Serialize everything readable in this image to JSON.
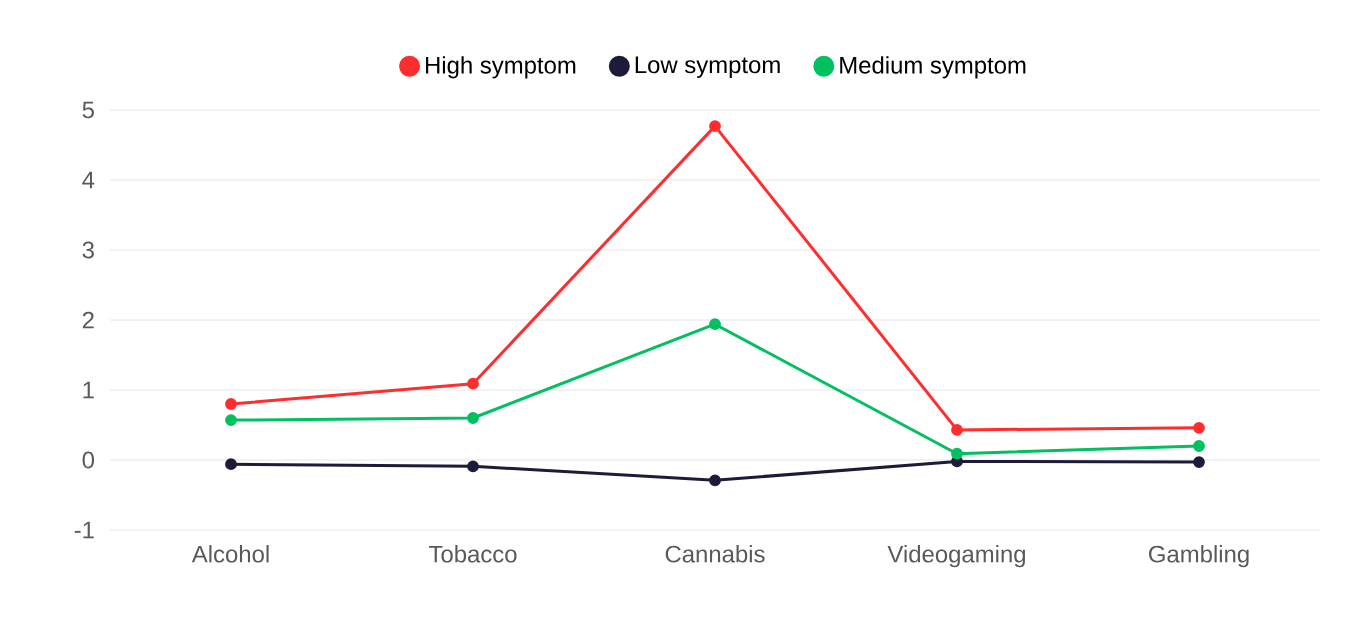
{
  "chart_data": {
    "type": "line",
    "categories": [
      "Alcohol",
      "Tobacco",
      "Cannabis",
      "Videogaming",
      "Gambling"
    ],
    "series": [
      {
        "name": "High symptom",
        "color": "#ff2d2d",
        "values": [
          0.8,
          1.09,
          4.77,
          0.43,
          0.46
        ]
      },
      {
        "name": "Low symptom",
        "color": "#1c1c3a",
        "values": [
          -0.06,
          -0.09,
          -0.29,
          -0.02,
          -0.03
        ]
      },
      {
        "name": "Medium symptom",
        "color": "#00c060",
        "values": [
          0.57,
          0.6,
          1.94,
          0.09,
          0.2
        ]
      }
    ],
    "ylim": [
      -1,
      5
    ],
    "yticks": [
      -1,
      0,
      1,
      2,
      3,
      4,
      5
    ],
    "grid": "y",
    "legend": "top",
    "marker": "circle",
    "line_style": "solid"
  }
}
